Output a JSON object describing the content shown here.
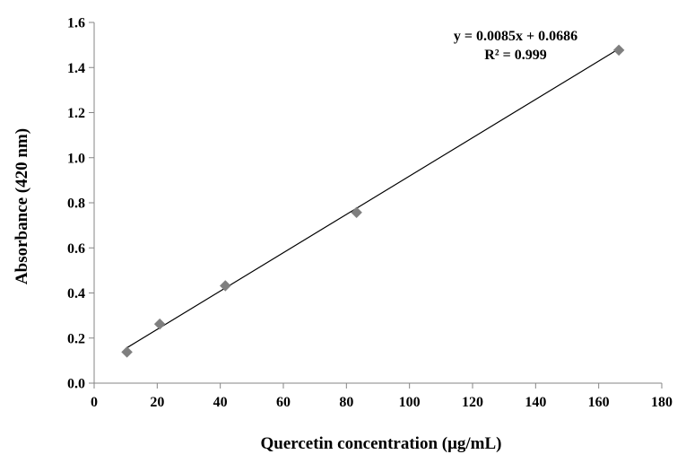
{
  "chart_data": {
    "type": "scatter",
    "xlabel": "Quercetin concentration (μg/mL)",
    "ylabel": "Absorbance (420 nm)",
    "xlim": [
      0,
      180
    ],
    "ylim": [
      0,
      1.6
    ],
    "xticks": [
      "0",
      "20",
      "40",
      "60",
      "80",
      "100",
      "120",
      "140",
      "160",
      "180"
    ],
    "yticks": [
      "0.0",
      "0.2",
      "0.4",
      "0.6",
      "0.8",
      "1.0",
      "1.2",
      "1.4",
      "1.6"
    ],
    "grid": false,
    "series": [
      {
        "marker": "diamond",
        "color": "#7f7f7f",
        "x": [
          10.4,
          20.8,
          41.6,
          83.2,
          166.4
        ],
        "y": [
          0.138,
          0.262,
          0.432,
          0.757,
          1.477
        ]
      }
    ],
    "trendline": {
      "type": "linear",
      "slope": 0.0085,
      "intercept": 0.0686,
      "x_range": [
        10.4,
        166.4
      ],
      "color": "#000000",
      "equation": "y = 0.0085x + 0.0686",
      "r_squared": "R² = 0.999"
    }
  }
}
